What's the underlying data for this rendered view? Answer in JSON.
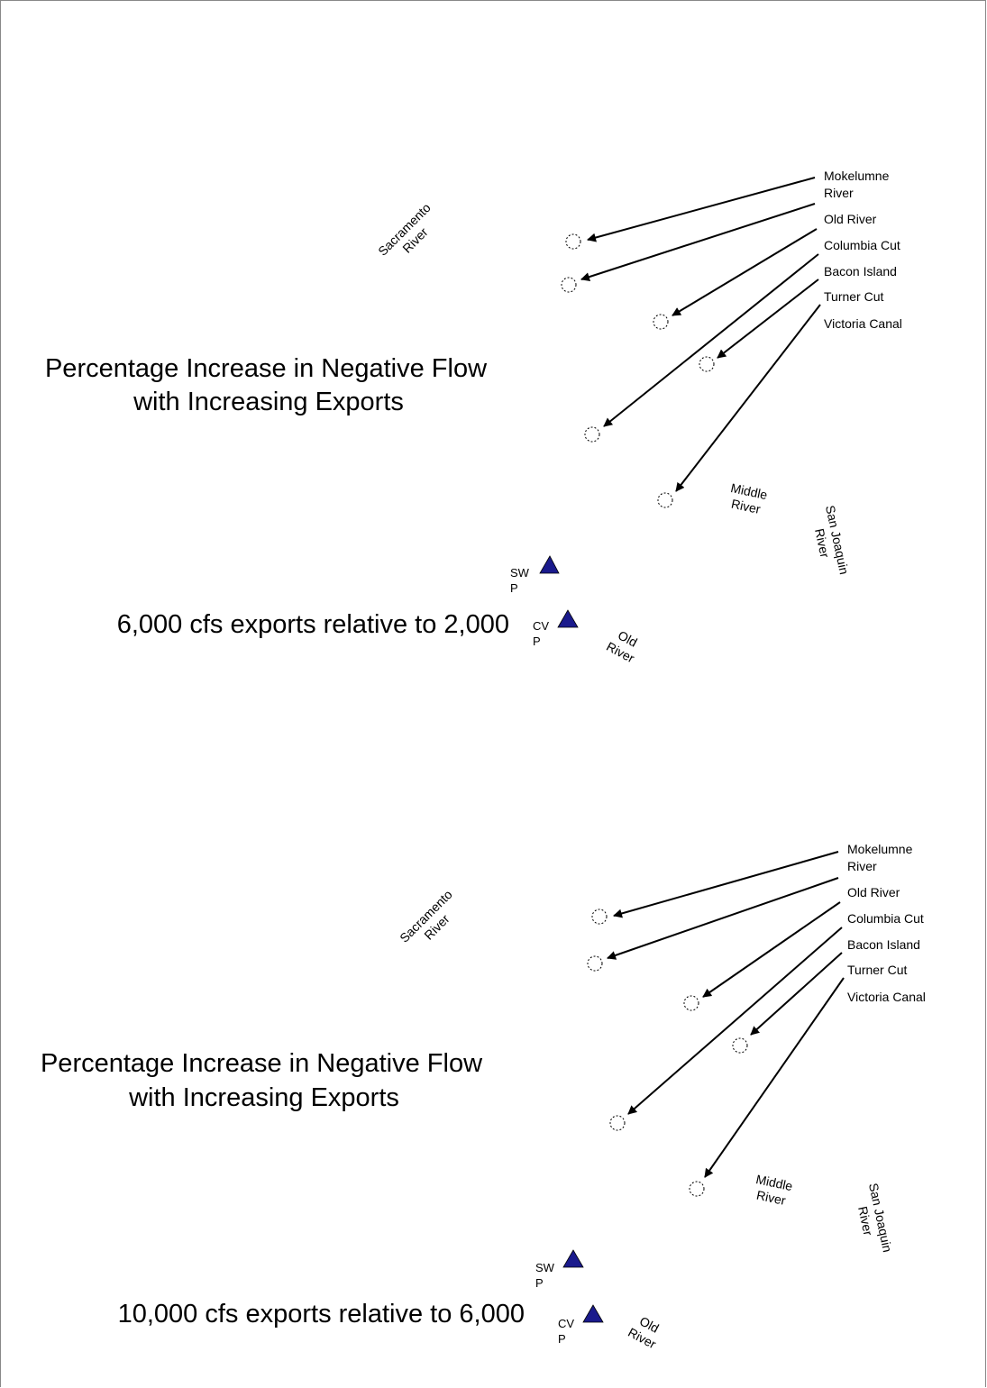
{
  "panels": [
    {
      "title_line1": "Percentage Increase in Negative Flow",
      "title_line2": "with Increasing Exports",
      "comparison": "6,000 cfs exports relative to 2,000",
      "channels": [
        {
          "line1": "Mokelumne",
          "line2": "River"
        },
        {
          "line1": "Old River",
          "line2": ""
        },
        {
          "line1": "Columbia Cut",
          "line2": ""
        },
        {
          "line1": "Bacon Island",
          "line2": ""
        },
        {
          "line1": "Turner Cut",
          "line2": ""
        },
        {
          "line1": "Victoria Canal",
          "line2": ""
        }
      ],
      "sacramento": {
        "line1": "Sacramento",
        "line2": "River"
      },
      "middle_river": {
        "line1": "Middle",
        "line2": "River"
      },
      "san_joaquin": {
        "line1": "San Joaquin",
        "line2": "River"
      },
      "old_river_south": {
        "line1": "Old",
        "line2": "River"
      },
      "swp": {
        "line1": "SW",
        "line2": "P"
      },
      "cvp": {
        "line1": "CV",
        "line2": "P"
      }
    },
    {
      "title_line1": "Percentage Increase in Negative Flow",
      "title_line2": "with Increasing Exports",
      "comparison": "10,000 cfs exports relative to 6,000",
      "channels": [
        {
          "line1": "Mokelumne",
          "line2": "River"
        },
        {
          "line1": "Old River",
          "line2": ""
        },
        {
          "line1": "Columbia Cut",
          "line2": ""
        },
        {
          "line1": "Bacon Island",
          "line2": ""
        },
        {
          "line1": "Turner Cut",
          "line2": ""
        },
        {
          "line1": "Victoria Canal",
          "line2": ""
        }
      ],
      "sacramento": {
        "line1": "Sacramento",
        "line2": "River"
      },
      "middle_river": {
        "line1": "Middle",
        "line2": "River"
      },
      "san_joaquin": {
        "line1": "San Joaquin",
        "line2": "River"
      },
      "old_river_south": {
        "line1": "Old",
        "line2": "River"
      },
      "swp": {
        "line1": "SW",
        "line2": "P"
      },
      "cvp": {
        "line1": "CV",
        "line2": "P"
      }
    }
  ],
  "colors": {
    "pump_marker": "#1a1a8c",
    "arrow": "#000000",
    "site_marker": "#000000"
  }
}
